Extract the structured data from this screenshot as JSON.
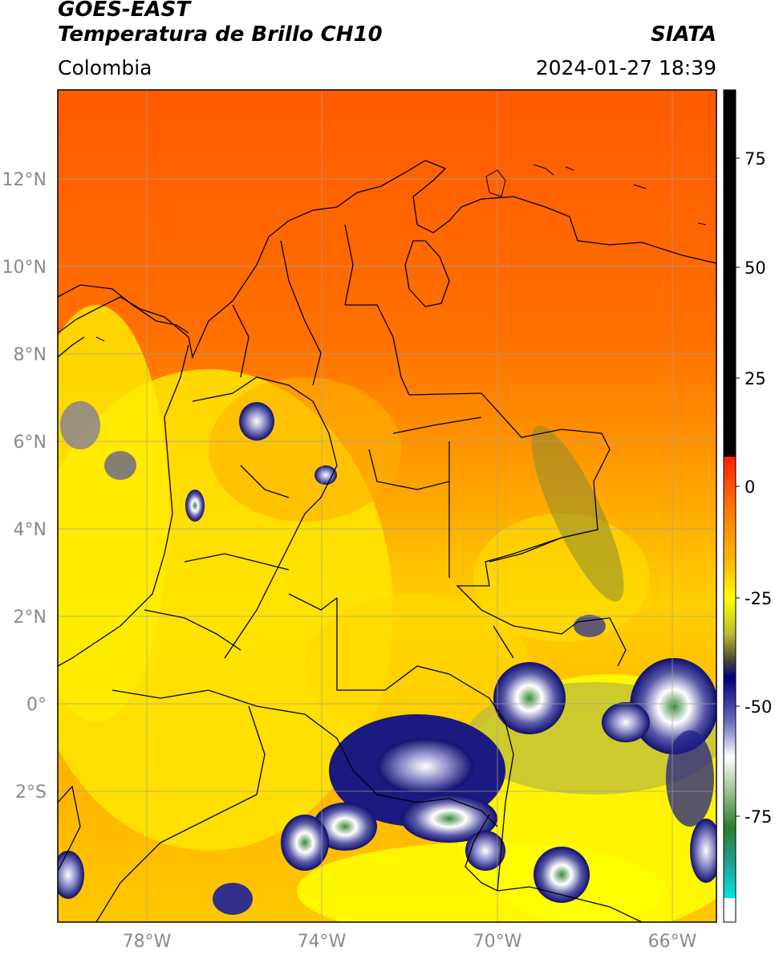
{
  "header": {
    "title_line1": "GOES-EAST",
    "title_line2": "Temperatura de Brillo CH10",
    "region": "Colombia",
    "organization": "SIATA",
    "datetime": "2024-01-27 18:39"
  },
  "map": {
    "lat_labels": [
      "12°N",
      "10°N",
      "8°N",
      "6°N",
      "4°N",
      "2°N",
      "0°",
      "2°S"
    ],
    "lon_labels": [
      "78°W",
      "74°W",
      "70°W",
      "66°W"
    ],
    "grid": true
  },
  "colorbar": {
    "tick_labels": [
      "75",
      "50",
      "25",
      "0",
      "-25",
      "-50",
      "-75"
    ],
    "colors": {
      "warm_black": "#000000",
      "red": "#ff0000",
      "orange": "#ff8c00",
      "yellow": "#ffff00",
      "olive": "#999933",
      "navy": "#000080",
      "white": "#ffffff",
      "green": "#2e7d32",
      "cyan": "#00e5e5"
    }
  }
}
